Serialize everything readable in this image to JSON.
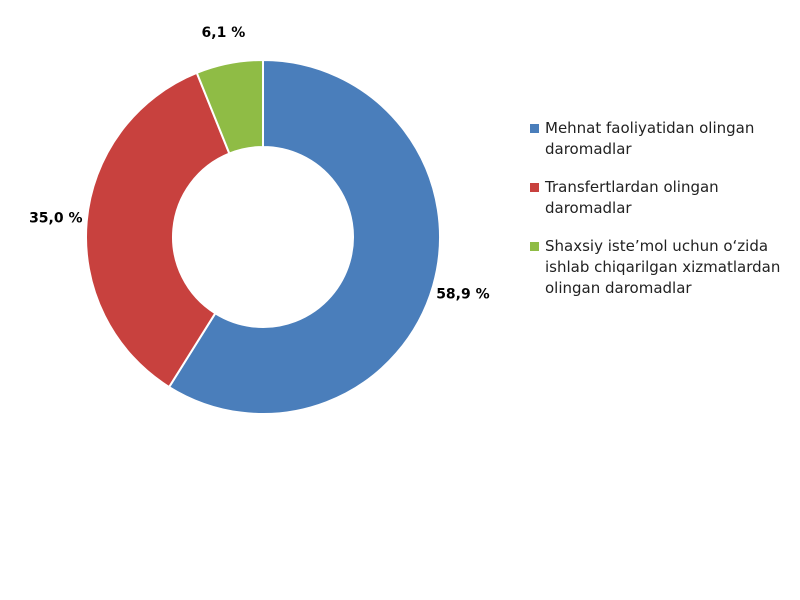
{
  "chart_data": {
    "type": "donut",
    "categories": [
      "Mehnat faoliyatidan olingan daromadlar",
      "Transfertlardan olingan daromadlar",
      "Shaxsiy iste’mol uchun o‘zida ishlab chiqarilgan xizmatlardan olingan daromadlar"
    ],
    "values": [
      58.9,
      35.0,
      6.1
    ],
    "value_labels": [
      "58,9 %",
      "35,0 %",
      "6,1 %"
    ],
    "colors": [
      "#4a7ebb",
      "#c8413e",
      "#8fbc45"
    ],
    "legend": "right"
  }
}
